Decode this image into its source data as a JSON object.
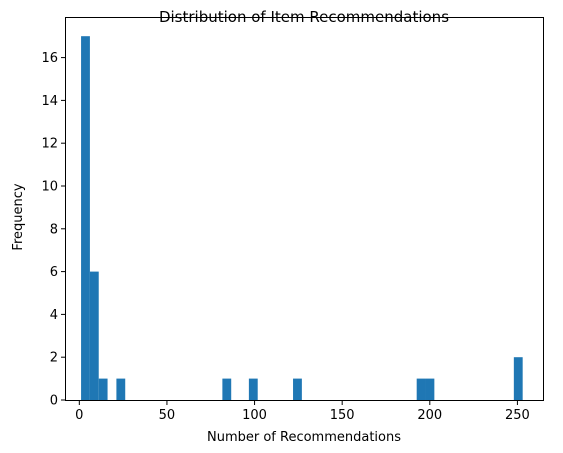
{
  "chart_data": {
    "type": "bar",
    "title": "Distribution of Item Recommendations",
    "xlabel": "Number of Recommendations",
    "ylabel": "Frequency",
    "xlim": [
      -7.6,
      264.6
    ],
    "ylim": [
      0,
      17.85
    ],
    "x_ticks": [
      0,
      50,
      100,
      150,
      200,
      250
    ],
    "y_ticks": [
      0,
      2,
      4,
      6,
      8,
      10,
      12,
      14,
      16
    ],
    "grid": false,
    "legend": "none",
    "bar_color": "#1f77b4",
    "bins": [
      {
        "x0": 1.0,
        "x1": 6.04,
        "count": 17
      },
      {
        "x0": 6.04,
        "x1": 11.08,
        "count": 6
      },
      {
        "x0": 11.08,
        "x1": 16.12,
        "count": 1
      },
      {
        "x0": 21.16,
        "x1": 26.2,
        "count": 1
      },
      {
        "x0": 81.64,
        "x1": 86.68,
        "count": 1
      },
      {
        "x0": 96.76,
        "x1": 101.8,
        "count": 1
      },
      {
        "x0": 121.96,
        "x1": 127.0,
        "count": 1
      },
      {
        "x0": 192.52,
        "x1": 197.56,
        "count": 1
      },
      {
        "x0": 197.56,
        "x1": 202.6,
        "count": 1
      },
      {
        "x0": 247.96,
        "x1": 253.0,
        "count": 2
      }
    ]
  }
}
